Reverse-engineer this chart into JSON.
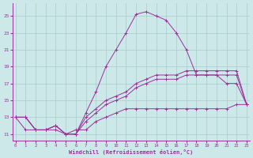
{
  "xlabel": "Windchill (Refroidissement éolien,°C)",
  "background_color": "#cce8e8",
  "grid_color": "#aacccc",
  "line_color": "#993399",
  "x_ticks": [
    0,
    1,
    2,
    3,
    4,
    5,
    6,
    7,
    8,
    9,
    10,
    11,
    12,
    13,
    14,
    15,
    16,
    17,
    18,
    19,
    20,
    21,
    22,
    23
  ],
  "y_ticks": [
    11,
    13,
    15,
    17,
    19,
    21,
    23,
    25
  ],
  "xlim": [
    -0.3,
    23.3
  ],
  "ylim": [
    10.2,
    26.5
  ],
  "curves": [
    {
      "x": [
        0,
        1,
        2,
        3,
        4,
        5,
        6,
        7,
        8,
        9,
        10,
        11,
        12,
        13,
        14,
        15,
        16,
        17,
        18,
        19,
        20,
        21,
        22,
        23
      ],
      "y": [
        13,
        13,
        11.5,
        11.5,
        12,
        11,
        11,
        13,
        14,
        15,
        15.5,
        16,
        17,
        17.5,
        18,
        18,
        18,
        18.5,
        18.5,
        18.5,
        18.5,
        18.5,
        18.5,
        14.5
      ],
      "style": "-",
      "marker": "+"
    },
    {
      "x": [
        0,
        1,
        2,
        3,
        4,
        5,
        6,
        7,
        8,
        9,
        10,
        11,
        12,
        13,
        14,
        15,
        16,
        17,
        18,
        19,
        20,
        21,
        22,
        23
      ],
      "y": [
        13,
        13,
        11.5,
        11.5,
        12,
        11,
        11,
        12.5,
        13.5,
        14.5,
        15,
        15.5,
        16.5,
        17,
        17.5,
        17.5,
        17.5,
        18,
        18,
        18,
        18,
        18,
        18,
        14.5
      ],
      "style": "-",
      "marker": "+"
    },
    {
      "x": [
        0,
        1,
        2,
        3,
        4,
        5,
        6,
        7,
        8,
        9,
        10,
        11,
        12,
        13,
        14,
        15,
        16,
        17,
        18,
        19,
        20,
        21,
        22,
        23
      ],
      "y": [
        13,
        13,
        11.5,
        11.5,
        12,
        11,
        11,
        13.5,
        16,
        19,
        21,
        23,
        25.2,
        25.5,
        25,
        24.5,
        23,
        21,
        18,
        18,
        18,
        17,
        17,
        14.5
      ],
      "style": "-",
      "marker": "+"
    },
    {
      "x": [
        0,
        1,
        2,
        3,
        4,
        5,
        6,
        7,
        8,
        9,
        10,
        11,
        12,
        13,
        14,
        15,
        16,
        17,
        18,
        19,
        20,
        21,
        22,
        23
      ],
      "y": [
        13,
        11.5,
        11.5,
        11.5,
        11.5,
        11,
        11.5,
        11.5,
        12.5,
        13,
        13.5,
        14,
        14,
        14,
        14,
        14,
        14,
        14,
        14,
        14,
        14,
        14,
        14.5,
        14.5
      ],
      "style": "-",
      "marker": "+"
    }
  ]
}
